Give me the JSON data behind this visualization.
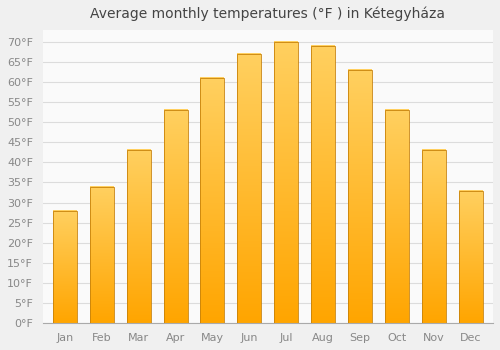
{
  "title": "Average monthly temperatures (°F ) in Kétegyháza",
  "months": [
    "Jan",
    "Feb",
    "Mar",
    "Apr",
    "May",
    "Jun",
    "Jul",
    "Aug",
    "Sep",
    "Oct",
    "Nov",
    "Dec"
  ],
  "values": [
    28,
    34,
    43,
    53,
    61,
    67,
    70,
    69,
    63,
    53,
    43,
    33
  ],
  "bar_color_bottom": "#FFA500",
  "bar_color_top": "#FFD060",
  "bar_edge_color": "#C8820A",
  "background_color": "#F0F0F0",
  "plot_bg_color": "#FAFAFA",
  "grid_color": "#DCDCDC",
  "yticks": [
    0,
    5,
    10,
    15,
    20,
    25,
    30,
    35,
    40,
    45,
    50,
    55,
    60,
    65,
    70
  ],
  "ylim": [
    0,
    73
  ],
  "title_fontsize": 10,
  "tick_fontsize": 8,
  "label_color": "#888888",
  "bar_width": 0.65
}
